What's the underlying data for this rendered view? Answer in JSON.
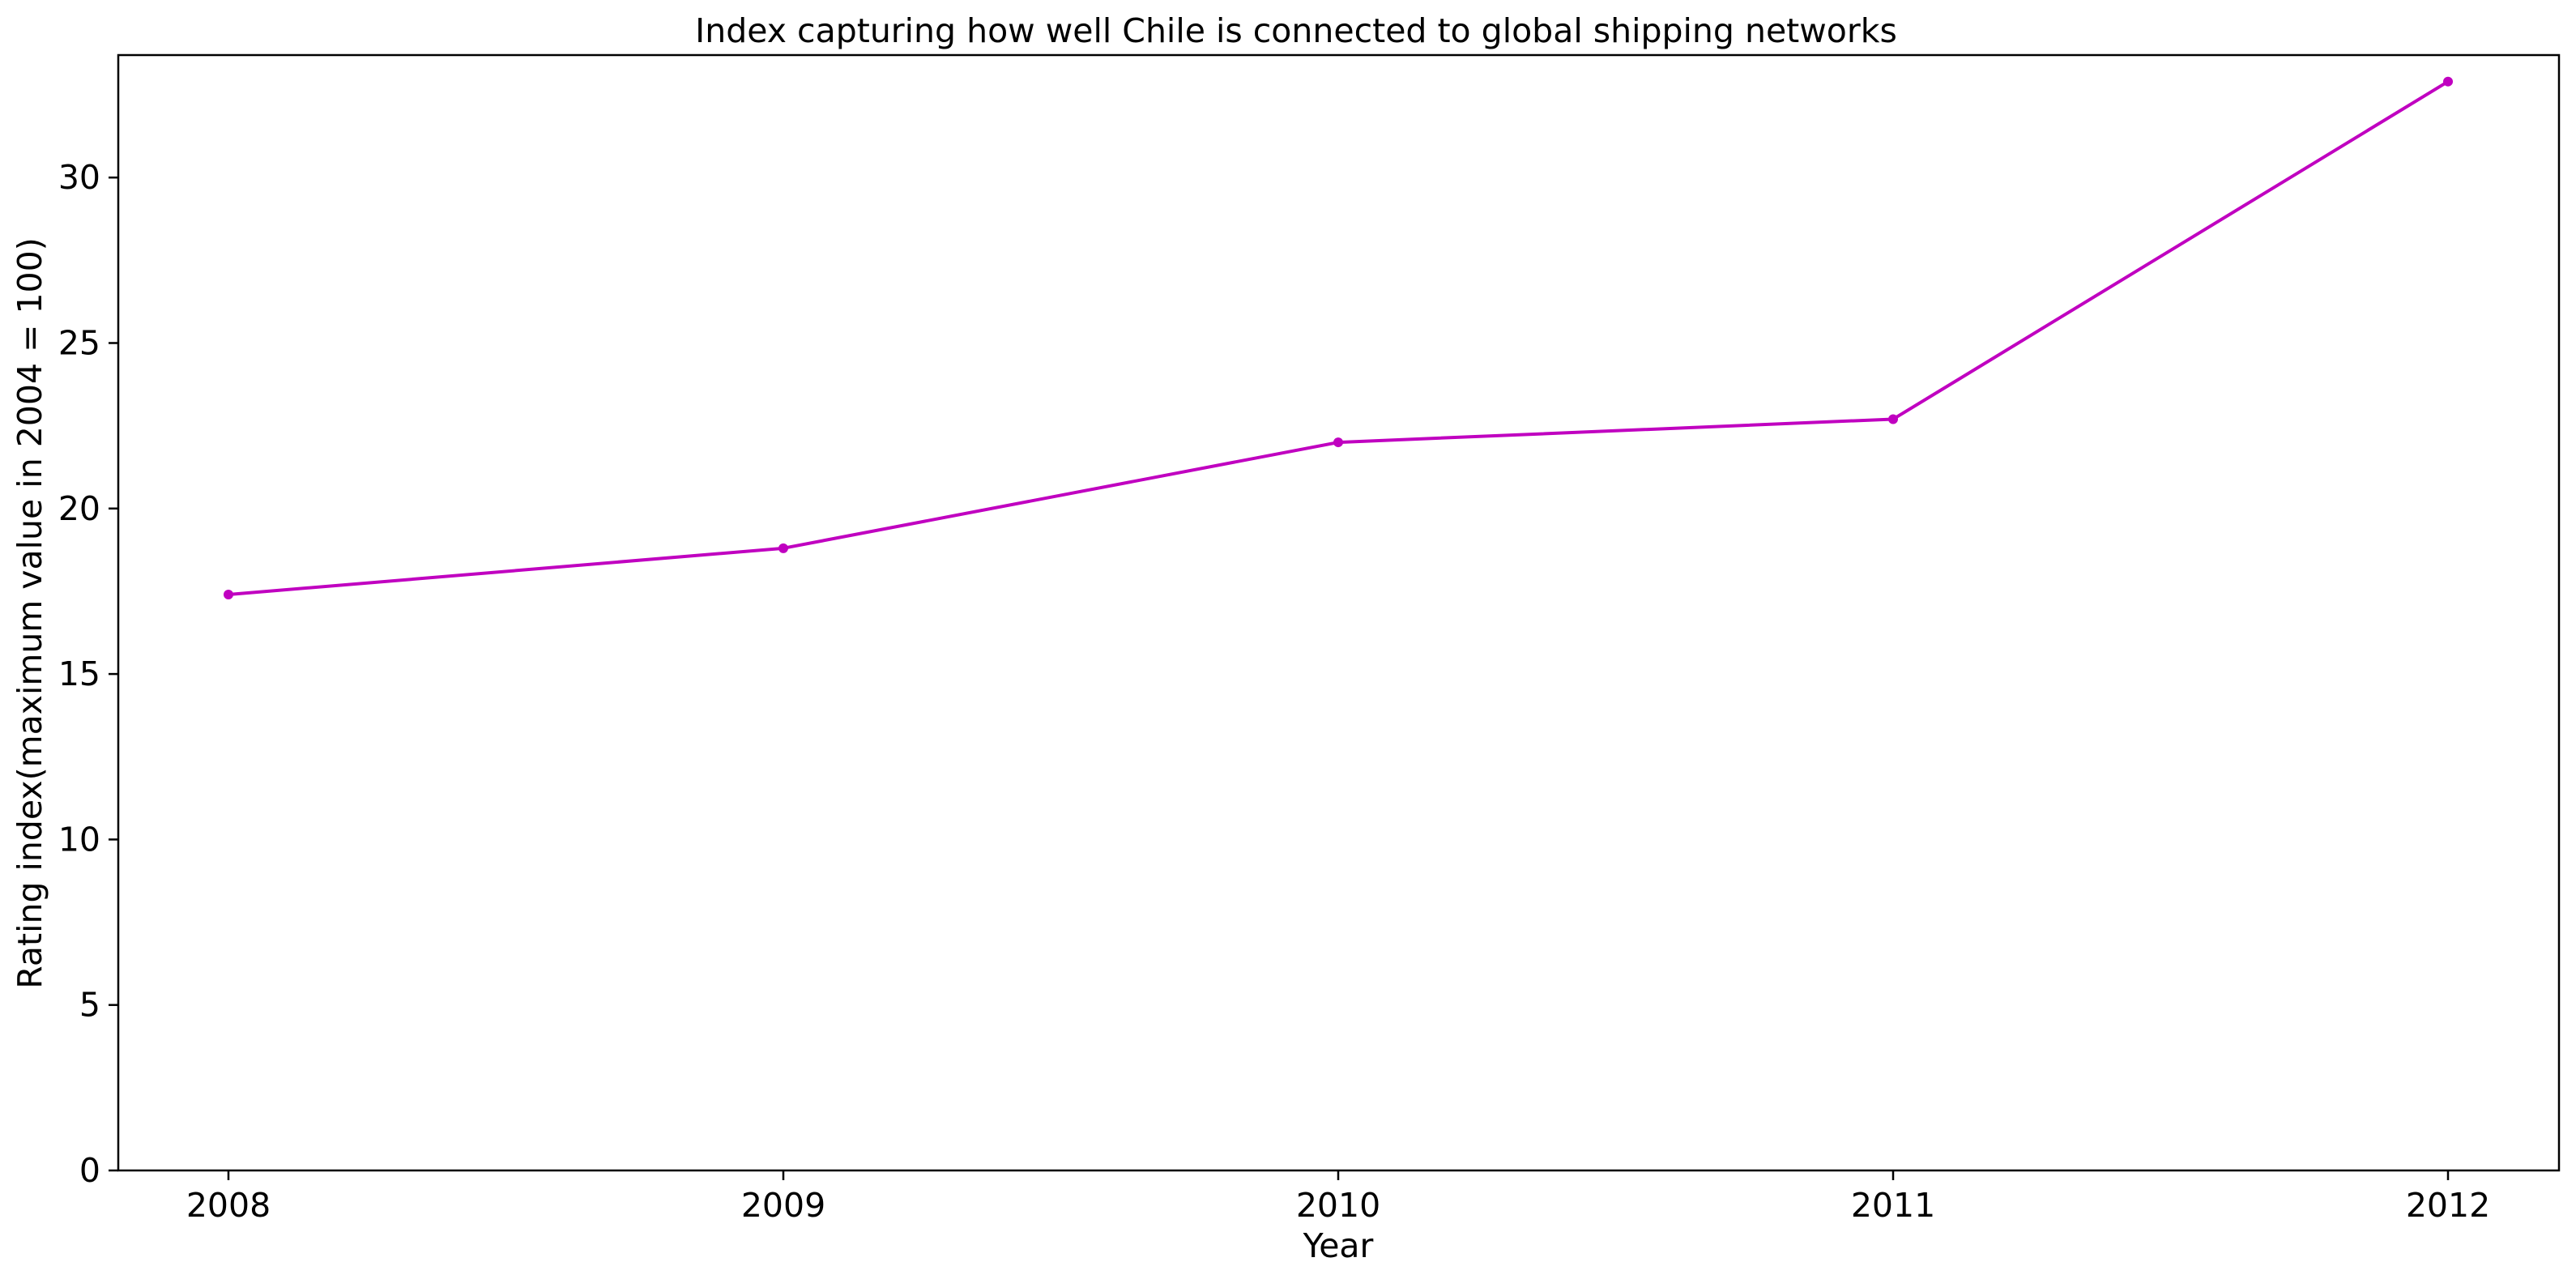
{
  "chart_data": {
    "type": "line",
    "title": "Index capturing how well Chile is connected to global shipping networks",
    "xlabel": "Year",
    "ylabel": "Rating index(maximum value in 2004 = 100)",
    "categories": [
      "2008",
      "2009",
      "2010",
      "2011",
      "2012"
    ],
    "series": [
      {
        "values": [
          17.4,
          18.8,
          22.0,
          22.7,
          32.9
        ],
        "color": "#c000c0",
        "marker": "circle"
      }
    ],
    "ylim": [
      0,
      33.7
    ],
    "yticks": [
      0,
      5,
      10,
      15,
      20,
      25,
      30
    ],
    "grid": false,
    "legend": "none"
  }
}
